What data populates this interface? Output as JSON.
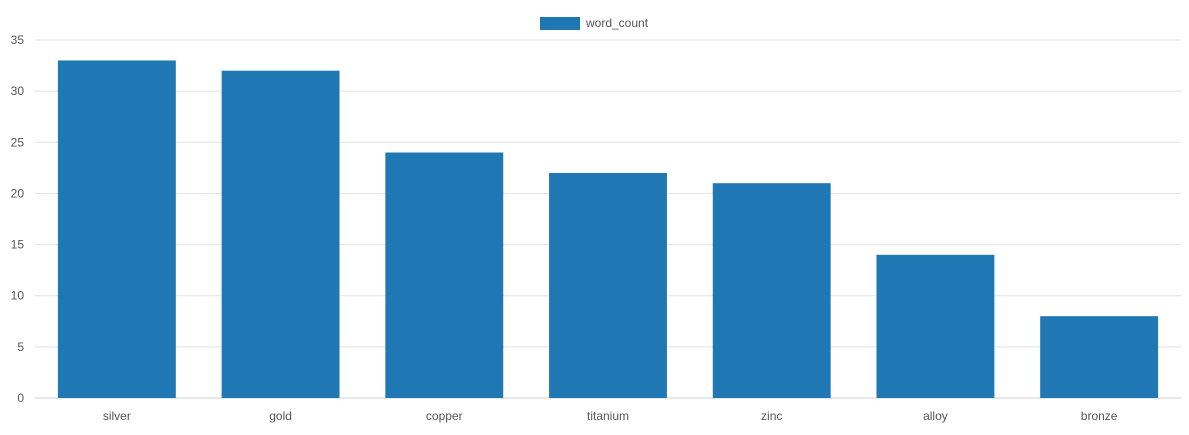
{
  "chart_data": {
    "type": "bar",
    "categories": [
      "silver",
      "gold",
      "copper",
      "titanium",
      "zinc",
      "alloy",
      "bronze"
    ],
    "series": [
      {
        "name": "word_count",
        "values": [
          33,
          32,
          24,
          22,
          21,
          14,
          8
        ],
        "color": "#1f77b4"
      }
    ],
    "yticks": [
      "0",
      "5",
      "10",
      "15",
      "20",
      "25",
      "30",
      "35"
    ],
    "ylim": [
      0,
      35
    ],
    "grid": true,
    "legend_position": "top-center"
  }
}
